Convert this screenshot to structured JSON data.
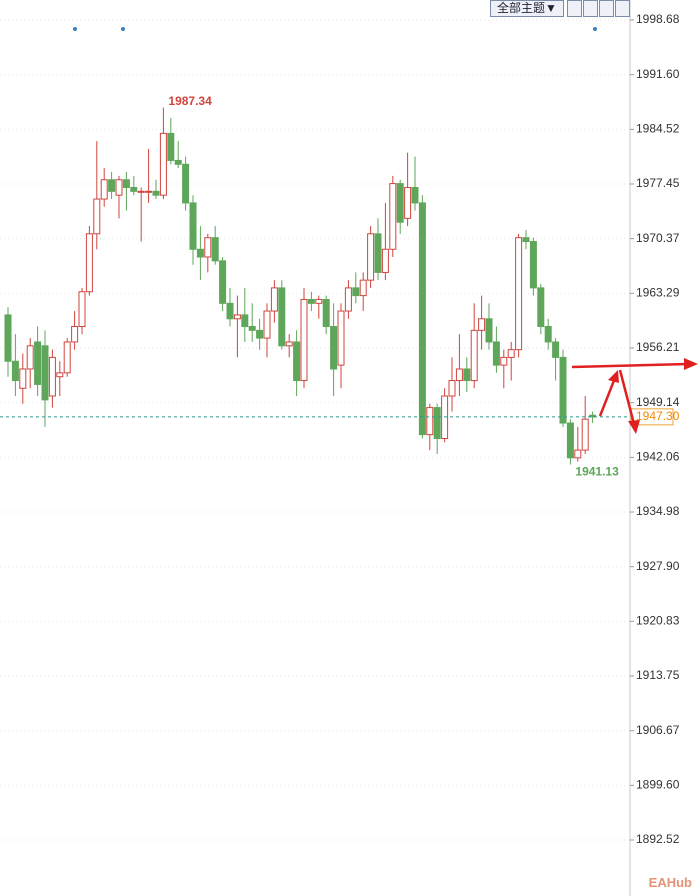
{
  "toolbar": {
    "theme_button": "全部主题▼"
  },
  "watermark": "EAHub",
  "chart_data": {
    "type": "candlestick",
    "up_color": "#d0443e",
    "down_color": "#5ea65a",
    "grid": true,
    "ylim": [
      1885.27,
      2001.27
    ],
    "yticks": [
      1998.68,
      {
        "value": 1991.6,
        "label": "1991.60"
      },
      1984.52,
      1977.45,
      1970.37,
      1963.29,
      1956.21,
      1949.14,
      1942.06,
      1934.98,
      {
        "value": 1927.9,
        "label": "1927.90"
      },
      1920.83,
      1913.75,
      1906.67,
      {
        "value": 1899.6,
        "label": "1899.60"
      },
      1892.52
    ],
    "current_price": {
      "value": 1947.3,
      "label": "1947.30"
    },
    "open": [
      1960.5,
      1954.5,
      1951,
      1953.5,
      1957,
      1956.5,
      1950,
      1952.5,
      1953,
      1957,
      1959,
      1963.5,
      1971,
      1975.5,
      1978,
      1976,
      1978,
      1977,
      1976.5,
      1976.5,
      1976.5,
      1976,
      1984,
      1980.5,
      1980,
      1975,
      1969,
      1968,
      1970.5,
      1967.5,
      1962,
      1960,
      1960.5,
      1959,
      1958.5,
      1957.5,
      1961,
      1964,
      1956.5,
      1957,
      1952,
      1962.5,
      1962,
      1962.5,
      1959,
      1954,
      1961,
      1964,
      1963,
      1965,
      1971,
      1966,
      1969,
      1977.5,
      1973,
      1977,
      1975,
      1945,
      1948.5,
      1944.5,
      1950,
      1952,
      1953.5,
      1952,
      1958.5,
      1960,
      1957,
      1954,
      1955,
      1956,
      1970.5,
      1970,
      1964,
      1959,
      1957,
      1955,
      1946.5,
      1942,
      1943,
      1947.5
    ],
    "high": [
      1961.5,
      1958,
      1955.5,
      1957.5,
      1959,
      1958.5,
      1956,
      1954.5,
      1957.5,
      1961,
      1964,
      1972,
      1983,
      1979.5,
      1979,
      1978.5,
      1979,
      1978.5,
      1977,
      1982,
      1978,
      1987.34,
      1986,
      1983,
      1981,
      1976,
      1972,
      1971,
      1972,
      1968,
      1964,
      1963,
      1964,
      1962,
      1960,
      1962,
      1965,
      1965,
      1958,
      1958.5,
      1964,
      1963.5,
      1963,
      1963,
      1962,
      1962,
      1965,
      1966,
      1966,
      1972,
      1973,
      1975,
      1978.5,
      1978,
      1981.5,
      1981,
      1976,
      1949,
      1949,
      1951,
      1955,
      1958,
      1955,
      1962,
      1963,
      1962,
      1959,
      1956,
      1957,
      1971,
      1971.5,
      1970.5,
      1964.5,
      1960,
      1957.5,
      1956,
      1947,
      1946,
      1950,
      1948
    ],
    "low": [
      1952.5,
      1950,
      1949,
      1951,
      1950,
      1946,
      1948.5,
      1950,
      1952.5,
      1956,
      1958,
      1963,
      1969,
      1974.5,
      1975.5,
      1973,
      1974,
      1976,
      1970,
      1975,
      1975.5,
      1975.5,
      1980,
      1979.5,
      1974,
      1967,
      1965,
      1966,
      1967,
      1961,
      1959,
      1955,
      1957,
      1957,
      1956,
      1955,
      1959.5,
      1956,
      1955,
      1950,
      1951,
      1961,
      1960,
      1958,
      1950,
      1951,
      1960,
      1962,
      1961,
      1964,
      1965,
      1965,
      1968,
      1971,
      1972,
      1974,
      1944.5,
      1943,
      1942.5,
      1944,
      1948,
      1950,
      1950.5,
      1951,
      1956,
      1956,
      1953,
      1951,
      1952,
      1955,
      1969,
      1963,
      1958,
      1956,
      1952,
      1946,
      1941.13,
      1941.5,
      1942.5,
      1946.5
    ],
    "close": [
      1954.5,
      1952,
      1953.5,
      1956.5,
      1951.5,
      1949.5,
      1955,
      1953,
      1957,
      1959,
      1963.5,
      1971,
      1975.5,
      1978,
      1976.5,
      1978,
      1977,
      1976.5,
      1976.5,
      1976.5,
      1976,
      1984,
      1980.5,
      1980,
      1975,
      1969,
      1968,
      1970.5,
      1967.5,
      1962,
      1960,
      1960.5,
      1959,
      1958.5,
      1957.5,
      1961,
      1964,
      1956.5,
      1957,
      1952,
      1962.5,
      1962,
      1962.5,
      1959,
      1953.5,
      1961,
      1964,
      1963,
      1965,
      1971,
      1966,
      1969,
      1977.5,
      1972.5,
      1977,
      1975,
      1945,
      1948.5,
      1944.5,
      1950,
      1952,
      1953.5,
      1952,
      1958.5,
      1960,
      1957,
      1954,
      1955,
      1956,
      1970.5,
      1970,
      1964,
      1959,
      1957,
      1955,
      1946.5,
      1942,
      1943,
      1947,
      1947.3
    ]
  }
}
